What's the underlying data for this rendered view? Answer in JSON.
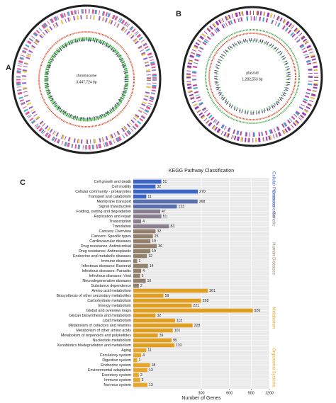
{
  "panels": {
    "a": {
      "label": "A",
      "name": "chromosome",
      "size": "3,447,724 bp"
    },
    "b": {
      "label": "B",
      "name": "plasmid",
      "size": "1,282,553 bp"
    }
  },
  "chart_data": {
    "type": "bar",
    "orientation": "horizontal",
    "panel_label": "C",
    "title": "KEGG Pathway Classification",
    "x_label": "Number of Genes",
    "xscale": "sqrt",
    "xlim": [
      0,
      1200
    ],
    "xticks": [
      300,
      600,
      900,
      1200
    ],
    "grid": true,
    "groups": [
      {
        "name": "Cellular Processes",
        "color": "#3e66c6",
        "categories": [
          "Cell growth and death",
          "Cell motility",
          "Cellular community - prokaryotes",
          "Transport and catabolism"
        ],
        "values": [
          51,
          32,
          270,
          11
        ]
      },
      {
        "name": "Environmental",
        "color": "#5a6fae",
        "categories": [
          "Membrane transport",
          "Signal transduction"
        ],
        "values": [
          268,
          123
        ]
      },
      {
        "name": "Genetic",
        "color": "#8a8090",
        "categories": [
          "Folding, sorting and degradation",
          "Replication and repair",
          "Transcription",
          "Translation"
        ],
        "values": [
          47,
          51,
          4,
          83
        ]
      },
      {
        "name": "Human Diseases",
        "color": "#93806b",
        "categories": [
          "Cancers: Overview",
          "Cancers: Specific types",
          "Cardiovascular diseases",
          "Drug resistance: Antimicrobial",
          "Drug resistance: Antineoplastic",
          "Endocrine and metabolic diseases",
          "Immune diseases",
          "Infectious diseases: Bacterial",
          "Infectious diseases: Parasitic",
          "Infectious diseases: Viral",
          "Neurodegenerative diseases",
          "Substance dependence"
        ],
        "values": [
          32,
          25,
          19,
          36,
          19,
          12,
          1,
          14,
          4,
          3,
          10,
          2
        ]
      },
      {
        "name": "Metabolism",
        "color": "#df9f22",
        "categories": [
          "Amino acid metabolism",
          "Biosynthesis of other secondary metabolites",
          "Carbohydrate metabolism",
          "Energy metabolism",
          "Global and overview maps",
          "Glycan biosynthesis and metabolism",
          "Lipid metabolism",
          "Metabolism of cofactors and vitamins",
          "Metabolism of other amino acids",
          "Metabolism of terpenoids and polyketides",
          "Nucleotide metabolism",
          "Xenobiotics biodegradation and metabolism"
        ],
        "values": [
          361,
          59,
          298,
          221,
          926,
          32,
          113,
          228,
          101,
          39,
          95,
          110
        ]
      },
      {
        "name": "Organismal Systems",
        "color": "#e6a62a",
        "categories": [
          "Aging",
          "Circulatory system",
          "Digestive system",
          "Endocrine system",
          "Environmental adaptation",
          "Excretory system",
          "Immune system",
          "Nervous system"
        ],
        "values": [
          11,
          4,
          1,
          18,
          13,
          2,
          3,
          13
        ]
      }
    ]
  }
}
